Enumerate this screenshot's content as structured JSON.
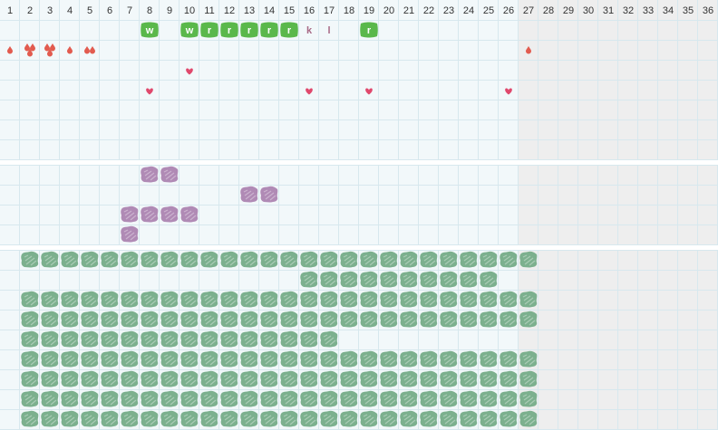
{
  "header": {
    "day_numbers": [
      "1",
      "2",
      "3",
      "4",
      "5",
      "6",
      "7",
      "8",
      "9",
      "10",
      "11",
      "12",
      "13",
      "14",
      "15",
      "16",
      "17",
      "18",
      "19",
      "20",
      "21",
      "22",
      "23",
      "24",
      "25",
      "26",
      "27",
      "28",
      "29",
      "30",
      "31",
      "32",
      "33",
      "34",
      "35",
      "36"
    ]
  },
  "active_days": 26,
  "colors": {
    "cell_active": "#f2f8fa",
    "cell_inactive": "#eeeeee",
    "grid_line": "#d7e8ee",
    "section_gap": "#ffffff",
    "header_text": "#333333",
    "green_tag": "#5ab84b",
    "letter_plain": "#a86a86",
    "drop": "#e25b4f",
    "heart": "#e0486c",
    "purple_blob": "#b08ab5",
    "green_blob": "#7cb08e"
  },
  "icons": {
    "drop": "drop-icon",
    "heart": "heart-icon",
    "purple_blob": "purple-blob-icon",
    "green_blob": "green-blob-icon"
  },
  "section1": {
    "letter_tags": [
      {
        "day": 8,
        "letter": "w",
        "style": "green"
      },
      {
        "day": 10,
        "letter": "w",
        "style": "green"
      },
      {
        "day": 11,
        "letter": "r",
        "style": "green"
      },
      {
        "day": 12,
        "letter": "r",
        "style": "green"
      },
      {
        "day": 13,
        "letter": "r",
        "style": "green"
      },
      {
        "day": 14,
        "letter": "r",
        "style": "green"
      },
      {
        "day": 15,
        "letter": "r",
        "style": "green"
      },
      {
        "day": 16,
        "letter": "k",
        "style": "plain"
      },
      {
        "day": 17,
        "letter": "l",
        "style": "plain"
      },
      {
        "day": 19,
        "letter": "r",
        "style": "green"
      }
    ],
    "drops": [
      {
        "day": 1,
        "count": 1
      },
      {
        "day": 2,
        "count": 3
      },
      {
        "day": 3,
        "count": 3
      },
      {
        "day": 4,
        "count": 1
      },
      {
        "day": 5,
        "count": 2
      },
      {
        "day": 27,
        "count": 1
      }
    ],
    "hearts": [
      {
        "day": 8,
        "row": 4
      },
      {
        "day": 10,
        "row": 3
      },
      {
        "day": 16,
        "row": 4
      },
      {
        "day": 19,
        "row": 4
      },
      {
        "day": 26,
        "row": 4
      }
    ]
  },
  "section2": {
    "purple_marks": [
      {
        "day": 8,
        "row": 0
      },
      {
        "day": 9,
        "row": 0
      },
      {
        "day": 13,
        "row": 1
      },
      {
        "day": 14,
        "row": 1
      },
      {
        "day": 7,
        "row": 2
      },
      {
        "day": 8,
        "row": 2
      },
      {
        "day": 9,
        "row": 2
      },
      {
        "day": 10,
        "row": 2
      },
      {
        "day": 7,
        "row": 3
      }
    ]
  },
  "section3": {
    "green_rows": [
      {
        "from": 2,
        "to": 27
      },
      {
        "from": 16,
        "to": 25
      },
      {
        "from": 2,
        "to": 27
      },
      {
        "from": 2,
        "to": 27
      },
      {
        "from": 2,
        "to": 17
      },
      {
        "from": 2,
        "to": 27
      },
      {
        "from": 2,
        "to": 27
      },
      {
        "from": 2,
        "to": 27
      },
      {
        "from": 2,
        "to": 27
      }
    ]
  }
}
